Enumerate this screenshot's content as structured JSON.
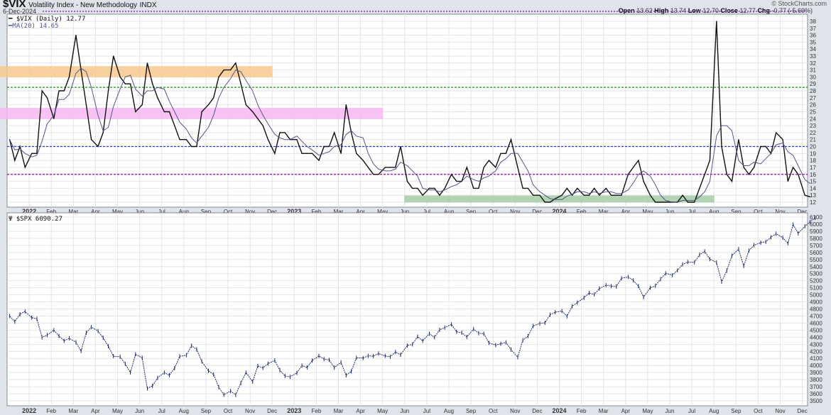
{
  "header": {
    "symbol": "$VIX",
    "name": "Volatility Index - New Methodology",
    "exchange": "INDX",
    "date": "6-Dec-2024",
    "copyright": "© StockCharts.com",
    "ohlc": {
      "open_label": "Open",
      "open": "13.62",
      "high_label": "High",
      "high": "13.74",
      "low_label": "Low",
      "low": "12.70",
      "close_label": "Close",
      "close": "12.77",
      "chg_label": "Chg",
      "chg": "-0.77 (-5.69%)"
    }
  },
  "colors": {
    "vix": "#111111",
    "ma": "#55558a",
    "spx": "#1f2a6b",
    "line_green": "#119911",
    "line_blue": "#3333cc",
    "line_purple": "#9900bb",
    "zone_orange": "#f7c98e",
    "zone_pink": "#f7b8f3",
    "zone_green": "#a6cda6",
    "grid": "#e2e4e8"
  },
  "chart_data": [
    {
      "type": "line",
      "panel": "top",
      "legend": [
        {
          "label": "$VIX (Daily) 12.77"
        },
        {
          "label": "MA(20) 14.65"
        }
      ],
      "ylim": [
        11,
        39
      ],
      "yticks": [
        12,
        13,
        14,
        15,
        16,
        17,
        18,
        19,
        20,
        21,
        22,
        23,
        24,
        25,
        26,
        27,
        28,
        29,
        30,
        31,
        32,
        33,
        34,
        35,
        36,
        37,
        38
      ],
      "grid": true,
      "x_labels": [
        "2022",
        "Feb",
        "Mar",
        "Apr",
        "May",
        "Jun",
        "Jul",
        "Aug",
        "Sep",
        "Oct",
        "Nov",
        "Dec",
        "2023",
        "Feb",
        "Mar",
        "Apr",
        "May",
        "Jun",
        "Jul",
        "Aug",
        "Sep",
        "Oct",
        "Nov",
        "Dec",
        "2024",
        "Feb",
        "Mar",
        "Apr",
        "May",
        "Jun",
        "Jul",
        "Aug",
        "Sep",
        "Oct",
        "Nov",
        "Dec"
      ],
      "horizontal_lines": [
        {
          "value": 28.5,
          "color": "green",
          "style": "dashed"
        },
        {
          "value": 20,
          "color": "blue",
          "style": "dashed"
        },
        {
          "value": 16,
          "color": "purple",
          "style": "dashed"
        }
      ],
      "zones": [
        {
          "from": "2021-12",
          "to": "2022-11",
          "low": 30,
          "high": 31.5,
          "color": "orange"
        },
        {
          "from": "2021-12",
          "to": "2023-04",
          "low": 24,
          "high": 25.5,
          "color": "pink"
        },
        {
          "from": "2023-06",
          "to": "2024-07",
          "low": 12,
          "high": 12.9,
          "color": "green"
        }
      ],
      "series": [
        {
          "name": "$VIX",
          "weekly_by_month": [
            [
              "2021-12",
              [
                21,
                18,
                20,
                17
              ]
            ],
            [
              "2022-01",
              [
                19,
                19,
                28,
                27
              ]
            ],
            [
              "2022-02",
              [
                24,
                28,
                28,
                30
              ]
            ],
            [
              "2022-03",
              [
                36,
                31,
                26,
                21
              ]
            ],
            [
              "2022-04",
              [
                20,
                22,
                28,
                33
              ]
            ],
            [
              "2022-05",
              [
                30,
                29,
                29,
                25
              ]
            ],
            [
              "2022-06",
              [
                26,
                32,
                29,
                27
              ]
            ],
            [
              "2022-07",
              [
                25,
                25,
                23,
                21
              ]
            ],
            [
              "2022-08",
              [
                21,
                20,
                20,
                25
              ]
            ],
            [
              "2022-09",
              [
                26,
                27,
                30,
                31
              ]
            ],
            [
              "2022-10",
              [
                31,
                32,
                29,
                26
              ]
            ],
            [
              "2022-11",
              [
                25,
                24,
                23,
                21
              ]
            ],
            [
              "2022-12",
              [
                19,
                22,
                22,
                21
              ]
            ],
            [
              "2023-01",
              [
                21,
                19,
                19,
                19
              ]
            ],
            [
              "2023-02",
              [
                18,
                20,
                20,
                22
              ]
            ],
            [
              "2023-03",
              [
                19,
                26,
                22,
                19
              ]
            ],
            [
              "2023-04",
              [
                18,
                17,
                16,
                16
              ]
            ],
            [
              "2023-05",
              [
                17,
                17,
                17,
                20
              ]
            ],
            [
              "2023-06",
              [
                15,
                14,
                14,
                13
              ]
            ],
            [
              "2023-07",
              [
                14,
                14,
                13,
                14
              ]
            ],
            [
              "2023-08",
              [
                16,
                15,
                15,
                17
              ]
            ],
            [
              "2023-09",
              [
                14,
                14,
                17,
                18
              ]
            ],
            [
              "2023-10",
              [
                17,
                19,
                19,
                21
              ]
            ],
            [
              "2023-11",
              [
                17,
                14,
                14,
                13
              ]
            ],
            [
              "2023-12",
              [
                13,
                12,
                12,
                12.5
              ]
            ],
            [
              "2024-01",
              [
                13,
                14,
                13,
                14
              ]
            ],
            [
              "2024-02",
              [
                13,
                13,
                14,
                13
              ]
            ],
            [
              "2024-03",
              [
                14,
                13,
                13,
                13
              ]
            ],
            [
              "2024-04",
              [
                16,
                17,
                18,
                15
              ]
            ],
            [
              "2024-05",
              [
                13,
                12,
                12,
                12
              ]
            ],
            [
              "2024-06",
              [
                12,
                12,
                13,
                12
              ]
            ],
            [
              "2024-07",
              [
                12,
                14,
                16,
                18
              ]
            ],
            [
              "2024-08",
              [
                38,
                20,
                16,
                15
              ]
            ],
            [
              "2024-09",
              [
                21,
                17,
                16,
                17
              ]
            ],
            [
              "2024-10",
              [
                20,
                20,
                19,
                22
              ]
            ],
            [
              "2024-11",
              [
                21,
                15,
                17,
                16
              ]
            ],
            [
              "2024-12",
              [
                13,
                12.77
              ]
            ]
          ]
        },
        {
          "name": "MA(20)",
          "derived_from": "$VIX"
        }
      ]
    },
    {
      "type": "line",
      "panel": "bottom",
      "legend": [
        {
          "label": "$SPX 6090.27"
        }
      ],
      "ylim": [
        3450,
        6150
      ],
      "yticks": [
        3500,
        3600,
        3700,
        3800,
        3900,
        4000,
        4100,
        4200,
        4300,
        4400,
        4500,
        4600,
        4700,
        4800,
        4900,
        5000,
        5100,
        5200,
        5300,
        5400,
        5500,
        5600,
        5700,
        5800,
        5900,
        6000,
        6100
      ],
      "grid": true,
      "series": [
        {
          "name": "$SPX",
          "weekly_by_month": [
            [
              "2021-12",
              [
                4700,
                4620,
                4725,
                4766
              ]
            ],
            [
              "2022-01",
              [
                4677,
                4662,
                4398,
                4431
              ]
            ],
            [
              "2022-02",
              [
                4500,
                4418,
                4349,
                4385
              ]
            ],
            [
              "2022-03",
              [
                4329,
                4204,
                4463,
                4543
              ]
            ],
            [
              "2022-04",
              [
                4488,
                4393,
                4272,
                4132
              ]
            ],
            [
              "2022-05",
              [
                4123,
                4023,
                3901,
                4158
              ]
            ],
            [
              "2022-06",
              [
                4108,
                3675,
                3712,
                3825
              ]
            ],
            [
              "2022-07",
              [
                3899,
                3863,
                3962,
                4130
              ]
            ],
            [
              "2022-08",
              [
                4145,
                4280,
                4228,
                4057
              ]
            ],
            [
              "2022-09",
              [
                3924,
                3873,
                3693,
                3585
              ]
            ],
            [
              "2022-10",
              [
                3639,
                3583,
                3752,
                3901
              ]
            ],
            [
              "2022-11",
              [
                3770,
                3993,
                3965,
                4026
              ]
            ],
            [
              "2022-12",
              [
                4071,
                3934,
                3852,
                3839
              ]
            ],
            [
              "2023-01",
              [
                3895,
                3999,
                3972,
                4070
              ]
            ],
            [
              "2023-02",
              [
                4136,
                4090,
                4079,
                3970
              ]
            ],
            [
              "2023-03",
              [
                4045,
                3861,
                3917,
                4109
              ]
            ],
            [
              "2023-04",
              [
                4105,
                4137,
                4133,
                4169
              ]
            ],
            [
              "2023-05",
              [
                4136,
                4124,
                4191,
                4151
              ]
            ],
            [
              "2023-06",
              [
                4282,
                4298,
                4409,
                4348
              ]
            ],
            [
              "2023-07",
              [
                4450,
                4398,
                4505,
                4536
              ]
            ],
            [
              "2023-08",
              [
                4582,
                4478,
                4464,
                4405
              ]
            ],
            [
              "2023-09",
              [
                4516,
                4457,
                4450,
                4320
              ]
            ],
            [
              "2023-10",
              [
                4288,
                4308,
                4327,
                4224
              ]
            ],
            [
              "2023-11",
              [
                4117,
                4358,
                4415,
                4559
              ]
            ],
            [
              "2023-12",
              [
                4594,
                4604,
                4719,
                4754
              ]
            ],
            [
              "2024-01",
              [
                4770,
                4697,
                4839,
                4891
              ]
            ],
            [
              "2024-02",
              [
                4958,
                5026,
                5005,
                5088
              ]
            ],
            [
              "2024-03",
              [
                5137,
                5123,
                5117,
                5234
              ]
            ],
            [
              "2024-04",
              [
                5254,
                5204,
                5123,
                4967
              ]
            ],
            [
              "2024-05",
              [
                5100,
                5127,
                5222,
                5304
              ]
            ],
            [
              "2024-06",
              [
                5278,
                5346,
                5432,
                5464
              ]
            ],
            [
              "2024-07",
              [
                5460,
                5567,
                5615,
                5505
              ]
            ],
            [
              "2024-08",
              [
                5459,
                5186,
                5344,
                5554
              ]
            ],
            [
              "2024-09",
              [
                5648,
                5408,
                5626,
                5702
              ]
            ],
            [
              "2024-10",
              [
                5738,
                5751,
                5815,
                5864
              ]
            ],
            [
              "2024-11",
              [
                5808,
                5728,
                5995,
                5870
              ]
            ],
            [
              "2024-12",
              [
                5969,
                6032,
                6090.27
              ]
            ]
          ]
        }
      ]
    }
  ]
}
